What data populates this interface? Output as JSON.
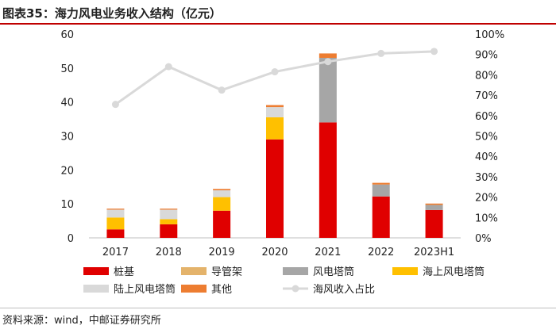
{
  "header": {
    "title": "图表35：海力风电业务收入结构（亿元）"
  },
  "footer": {
    "source": "资料来源：wind，中邮证券研究所"
  },
  "colors": {
    "桩基": "#e00000",
    "导管架": "#e4b36b",
    "风电塔筒": "#a6a6a6",
    "海上风电塔筒": "#ffc000",
    "陆上风电塔筒": "#d9d9d9",
    "其他": "#ed7d31",
    "海风收入占比": "#d9d9d9"
  },
  "chart_data": {
    "type": "bar",
    "stacked": true,
    "categories": [
      "2017",
      "2018",
      "2019",
      "2020",
      "2021",
      "2022",
      "2023H1"
    ],
    "series": [
      {
        "name": "桩基",
        "values": [
          2.5,
          4.0,
          8.0,
          29.0,
          34.0,
          12.2,
          8.2
        ]
      },
      {
        "name": "导管架",
        "values": [
          0,
          0,
          0,
          0,
          0,
          0,
          0
        ]
      },
      {
        "name": "风电塔筒",
        "values": [
          0,
          0,
          0,
          0,
          19.0,
          3.5,
          1.5
        ]
      },
      {
        "name": "海上风电塔筒",
        "values": [
          3.5,
          1.5,
          4.0,
          6.5,
          0,
          0,
          0
        ]
      },
      {
        "name": "陆上风电塔筒",
        "values": [
          2.3,
          2.8,
          2.0,
          3.0,
          0,
          0,
          0
        ]
      },
      {
        "name": "其他",
        "values": [
          0.3,
          0.3,
          0.4,
          0.6,
          1.3,
          0.5,
          0.4
        ]
      }
    ],
    "line_series": {
      "name": "海风收入占比",
      "axis": "right",
      "values": [
        0.655,
        0.84,
        0.725,
        0.815,
        0.865,
        0.905,
        0.915
      ]
    },
    "ylim": [
      0,
      60
    ],
    "yticks": [
      0,
      10,
      20,
      30,
      40,
      50,
      60
    ],
    "y2lim": [
      0,
      1
    ],
    "y2ticks": [
      "0%",
      "10%",
      "20%",
      "30%",
      "40%",
      "50%",
      "60%",
      "70%",
      "80%",
      "90%",
      "100%"
    ],
    "legend_position": "bottom",
    "grid": false
  }
}
